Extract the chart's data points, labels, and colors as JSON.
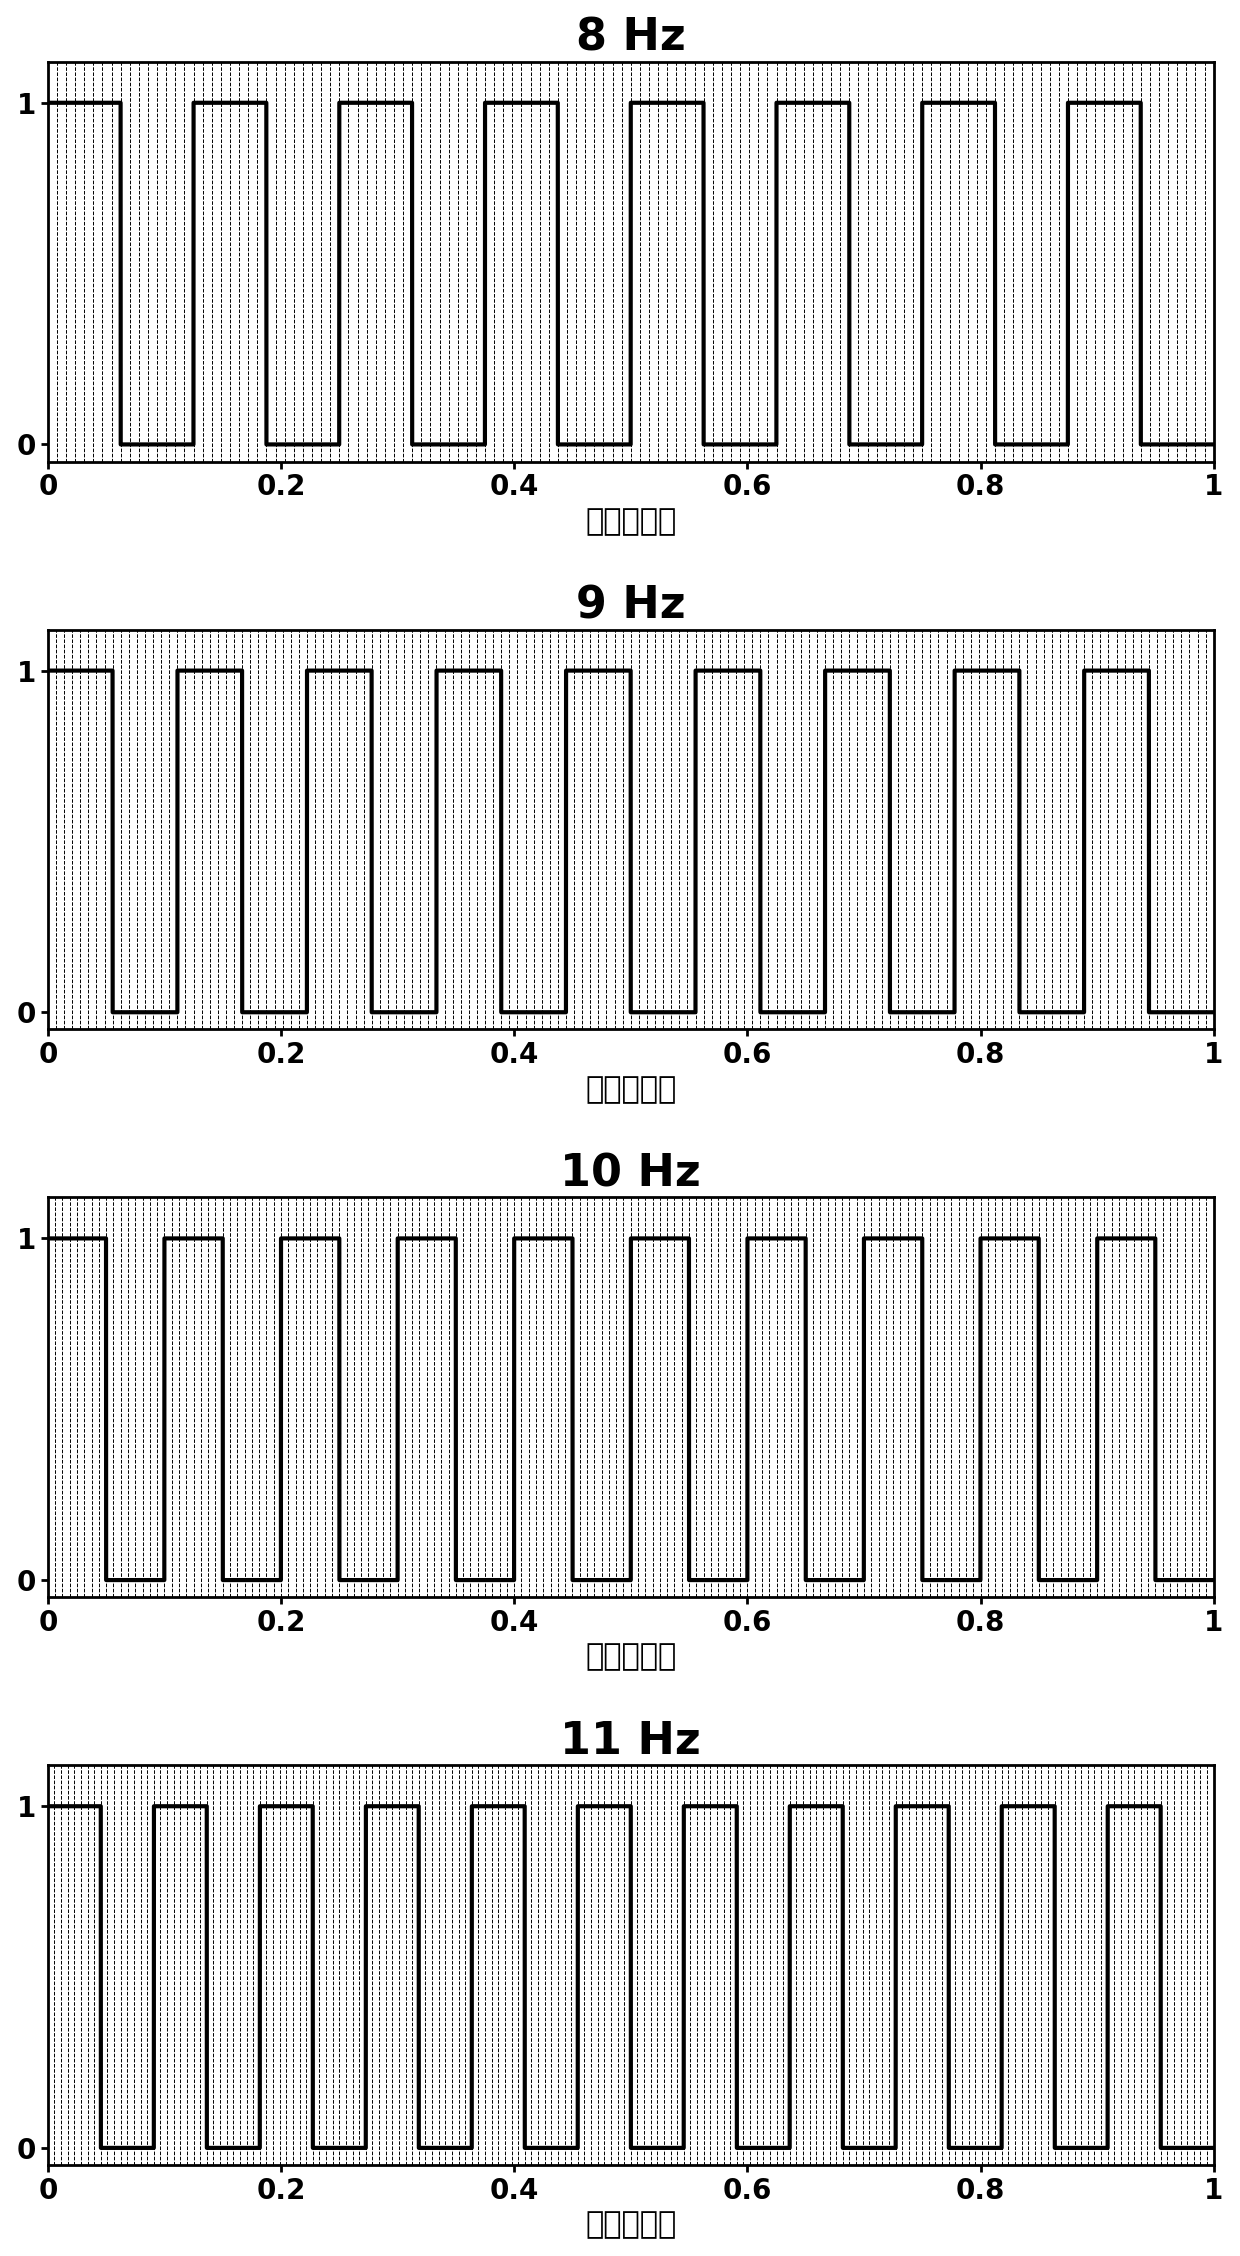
{
  "frequencies": [
    8,
    9,
    10,
    11
  ],
  "titles": [
    "8 Hz",
    "9 Hz",
    "10 Hz",
    "11 Hz"
  ],
  "xlabel": "时间（秒）",
  "duration": 1.0,
  "sample_rate": 10000,
  "ylim": [
    -0.05,
    1.12
  ],
  "xlim": [
    0,
    1
  ],
  "yticks": [
    0,
    1
  ],
  "xticks": [
    0,
    0.2,
    0.4,
    0.6,
    0.8,
    1
  ],
  "title_fontsize": 32,
  "label_fontsize": 22,
  "tick_fontsize": 20,
  "line_color": "#000000",
  "line_width": 3.0,
  "grid_color": "#000000",
  "grid_linestyle": "--",
  "grid_linewidth": 0.7,
  "grid_alpha": 1.0,
  "background_color": "#ffffff",
  "figsize": [
    12.4,
    22.56
  ],
  "minor_divisions_per_cycle": 16
}
